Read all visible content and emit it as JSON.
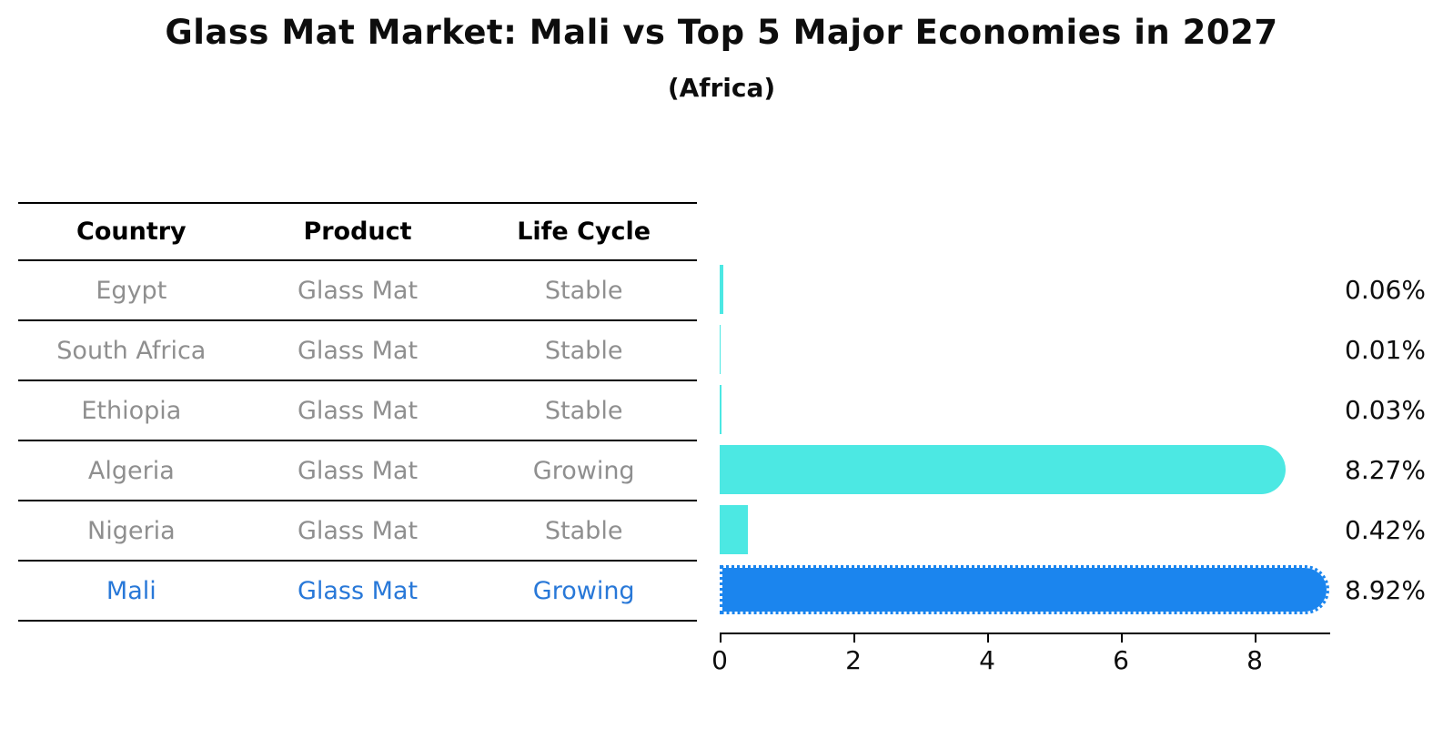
{
  "header": {
    "title": "Glass Mat Market: Mali vs Top 5 Major Economies in 2027",
    "subtitle": "(Africa)"
  },
  "table": {
    "headers": [
      "Country",
      "Product",
      "Life Cycle"
    ],
    "rows": [
      {
        "country": "Egypt",
        "product": "Glass Mat",
        "life_cycle": "Stable",
        "highlighted": false
      },
      {
        "country": "South Africa",
        "product": "Glass Mat",
        "life_cycle": "Stable",
        "highlighted": false
      },
      {
        "country": "Ethiopia",
        "product": "Glass Mat",
        "life_cycle": "Stable",
        "highlighted": false
      },
      {
        "country": "Algeria",
        "product": "Glass Mat",
        "life_cycle": "Growing",
        "highlighted": false
      },
      {
        "country": "Nigeria",
        "product": "Glass Mat",
        "life_cycle": "Stable",
        "highlighted": false
      },
      {
        "country": "Mali",
        "product": "Glass Mat",
        "life_cycle": "Growing",
        "highlighted": true
      }
    ]
  },
  "chart_data": {
    "type": "bar",
    "orientation": "horizontal",
    "title": "Glass Mat Market: Mali vs Top 5 Major Economies in 2027",
    "subtitle": "(Africa)",
    "categories": [
      "Egypt",
      "South Africa",
      "Ethiopia",
      "Algeria",
      "Nigeria",
      "Mali"
    ],
    "values": [
      0.06,
      0.01,
      0.03,
      8.27,
      0.42,
      8.92
    ],
    "value_labels": [
      "0.06%",
      "0.01%",
      "0.03%",
      "8.27%",
      "0.42%",
      "8.92%"
    ],
    "x_ticks": [
      0,
      2,
      4,
      6,
      8
    ],
    "xlim": [
      0,
      9.2
    ],
    "xlabel": "",
    "ylabel": "",
    "grid": false,
    "legend": null,
    "highlight_index": 5,
    "highlight_style": "dotted-outline"
  },
  "colors": {
    "bar_default": "#4ce8e3",
    "bar_highlight": "#1b85ee",
    "highlight_text": "#2878d8",
    "row_text": "#8f8f8f",
    "axis": "#000000",
    "background": "#ffffff"
  }
}
